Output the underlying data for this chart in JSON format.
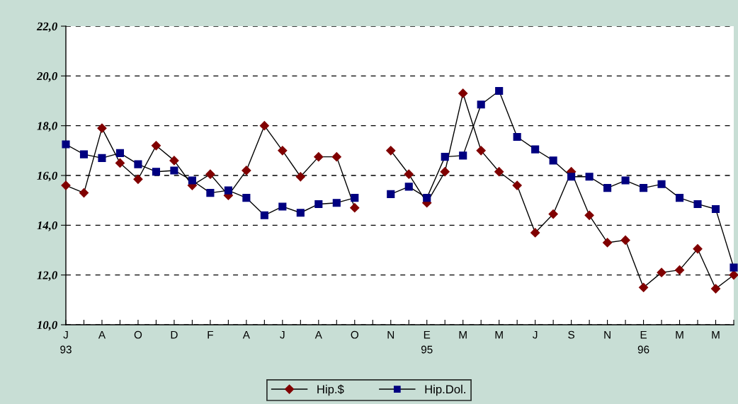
{
  "chart_data": {
    "type": "line",
    "categories": [
      "J\n93",
      null,
      "A",
      null,
      "O",
      null,
      "D",
      null,
      "F",
      null,
      "A",
      null,
      "J",
      null,
      "A",
      null,
      "O",
      null,
      "N",
      null,
      "E\n95",
      null,
      "M",
      null,
      "M",
      null,
      "J",
      null,
      "S",
      null,
      "N",
      null,
      "E\n96",
      null,
      "M",
      null,
      "M",
      null
    ],
    "series": [
      {
        "name": "Hip.$",
        "color": "#800000",
        "marker": "diamond",
        "values": [
          15.6,
          15.3,
          17.9,
          16.5,
          15.85,
          17.2,
          16.6,
          15.6,
          16.05,
          15.2,
          16.2,
          18.0,
          17.0,
          15.95,
          16.75,
          16.75,
          14.7,
          null,
          17.0,
          16.05,
          14.9,
          16.15,
          19.3,
          17.0,
          16.15,
          15.6,
          13.7,
          14.45,
          16.15,
          14.4,
          13.3,
          13.4,
          11.5,
          12.1,
          12.2,
          13.05,
          11.45,
          12.0
        ]
      },
      {
        "name": "Hip.Dol.",
        "color": "#000080",
        "marker": "square",
        "values": [
          17.25,
          16.85,
          16.7,
          16.9,
          16.45,
          16.15,
          16.2,
          15.8,
          15.3,
          15.4,
          15.1,
          14.4,
          14.75,
          14.5,
          14.85,
          14.9,
          15.1,
          null,
          15.25,
          15.55,
          15.1,
          16.75,
          16.8,
          18.85,
          19.4,
          17.55,
          17.05,
          16.6,
          15.95,
          15.95,
          15.5,
          15.8,
          15.5,
          15.65,
          15.1,
          14.85,
          14.65,
          12.3
        ]
      }
    ],
    "ylim": [
      10,
      22
    ],
    "yticks": [
      {
        "value": 10,
        "label": "10,0"
      },
      {
        "value": 12,
        "label": "12,0"
      },
      {
        "value": 14,
        "label": "14,0"
      },
      {
        "value": 16,
        "label": "16,0"
      },
      {
        "value": 18,
        "label": "18,0"
      },
      {
        "value": 20,
        "label": "20,0"
      },
      {
        "value": 22,
        "label": "22,0"
      }
    ],
    "grid": "y",
    "line_style": "solid",
    "legend": "bottom"
  }
}
